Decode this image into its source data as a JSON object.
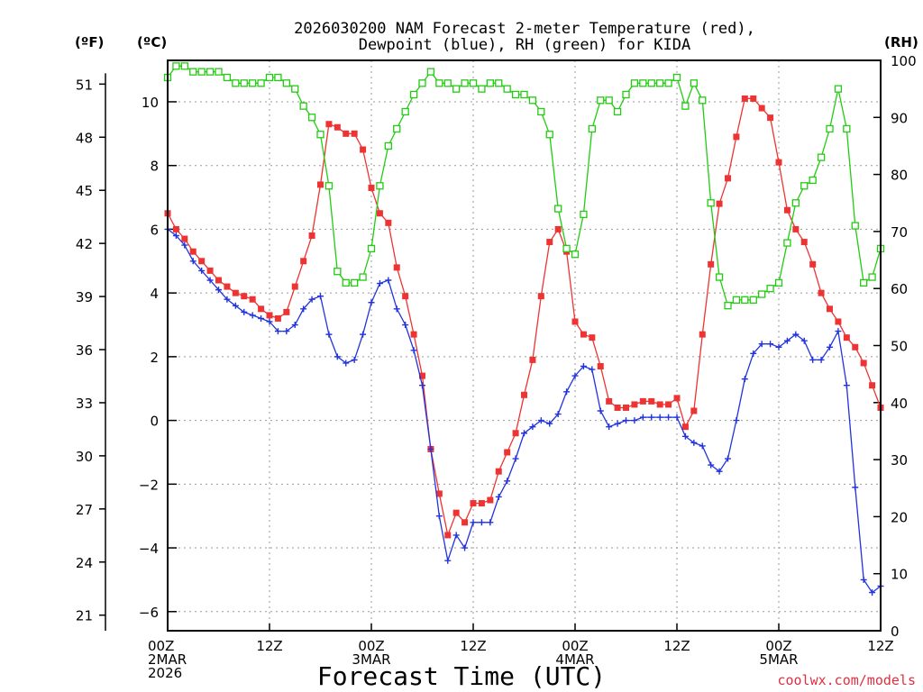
{
  "chart_data": {
    "type": "line",
    "title_line1": "2026030200 NAM Forecast 2-meter Temperature (red),",
    "title_line2": "Dewpoint (blue), RH (green) for KIDA",
    "xlabel": "Forecast Time (UTC)",
    "watermark": "coolwx.com/models",
    "unit_f": "(ºF)",
    "unit_c": "(ºC)",
    "unit_rh": "(RH)",
    "ylim_c": [
      -6.6,
      11.3
    ],
    "ylim_rh": [
      0,
      100
    ],
    "grid": true,
    "x_ticks": [
      {
        "hour": 0,
        "lines": [
          "00Z",
          "2MAR",
          "2026"
        ]
      },
      {
        "hour": 12,
        "lines": [
          "12Z"
        ]
      },
      {
        "hour": 24,
        "lines": [
          "00Z",
          "3MAR"
        ]
      },
      {
        "hour": 36,
        "lines": [
          "12Z"
        ]
      },
      {
        "hour": 48,
        "lines": [
          "00Z",
          "4MAR"
        ]
      },
      {
        "hour": 60,
        "lines": [
          "12Z"
        ]
      },
      {
        "hour": 72,
        "lines": [
          "00Z",
          "5MAR"
        ]
      },
      {
        "hour": 84,
        "lines": [
          "12Z"
        ]
      }
    ],
    "y_ticks_c": [
      "-6",
      "-4",
      "-2",
      "0",
      "2",
      "4",
      "6",
      "8",
      "10"
    ],
    "y_ticks_f": [
      "21",
      "24",
      "27",
      "30",
      "33",
      "36",
      "39",
      "42",
      "45",
      "48",
      "51"
    ],
    "y_ticks_rh": [
      "0",
      "10",
      "20",
      "30",
      "40",
      "50",
      "60",
      "70",
      "80",
      "90",
      "100"
    ],
    "series": [
      {
        "key": "temperature",
        "color": "#ee3333",
        "marker": "filled-square",
        "x": [
          0,
          1,
          2,
          3,
          4,
          5,
          6,
          7,
          8,
          9,
          10,
          11,
          12,
          13,
          14,
          15,
          16,
          17,
          18,
          19,
          20,
          21,
          22,
          23,
          24,
          25,
          26,
          27,
          28,
          29,
          30,
          31,
          32,
          33,
          34,
          35,
          36,
          37,
          38,
          39,
          40,
          41,
          42,
          43,
          44,
          45,
          46,
          47,
          48,
          49,
          50,
          51,
          52,
          53,
          54,
          55,
          56,
          57,
          58,
          59,
          60,
          61,
          62,
          63,
          64,
          65,
          66,
          67,
          68,
          69,
          70,
          71,
          72,
          73,
          74,
          75,
          76,
          77,
          78,
          79,
          80,
          81,
          82,
          83,
          84
        ],
        "values": [
          6.5,
          6.0,
          5.7,
          5.3,
          5.0,
          4.7,
          4.4,
          4.2,
          4.0,
          3.9,
          3.8,
          3.5,
          3.3,
          3.2,
          3.4,
          4.2,
          5.0,
          5.8,
          7.4,
          9.3,
          9.2,
          9.0,
          9.0,
          8.5,
          7.3,
          6.5,
          6.2,
          4.8,
          3.9,
          2.7,
          1.4,
          -0.9,
          -2.3,
          -3.6,
          -2.9,
          -3.2,
          -2.6,
          -2.6,
          -2.5,
          -1.6,
          -1.0,
          -0.4,
          0.8,
          1.9,
          3.9,
          5.6,
          6.0,
          5.3,
          3.1,
          2.7,
          2.6,
          1.7,
          0.6,
          0.4,
          0.4,
          0.5,
          0.6,
          0.6,
          0.5,
          0.5,
          0.7,
          -0.2,
          0.3,
          2.7,
          4.9,
          6.8,
          7.6,
          8.9,
          10.1,
          10.1,
          9.8,
          9.5,
          8.1,
          6.6,
          6.0,
          5.6,
          4.9,
          4.0,
          3.5,
          3.1,
          2.6,
          2.3,
          1.8,
          1.1,
          0.4
        ]
      },
      {
        "key": "dewpoint",
        "color": "#2233dd",
        "marker": "plus",
        "x": [
          0,
          1,
          2,
          3,
          4,
          5,
          6,
          7,
          8,
          9,
          10,
          11,
          12,
          13,
          14,
          15,
          16,
          17,
          18,
          19,
          20,
          21,
          22,
          23,
          24,
          25,
          26,
          27,
          28,
          29,
          30,
          31,
          32,
          33,
          34,
          35,
          36,
          37,
          38,
          39,
          40,
          41,
          42,
          43,
          44,
          45,
          46,
          47,
          48,
          49,
          50,
          51,
          52,
          53,
          54,
          55,
          56,
          57,
          58,
          59,
          60,
          61,
          62,
          63,
          64,
          65,
          66,
          67,
          68,
          69,
          70,
          71,
          72,
          73,
          74,
          75,
          76,
          77,
          78,
          79,
          80,
          81,
          82,
          83,
          84
        ],
        "values": [
          6.0,
          5.8,
          5.5,
          5.0,
          4.7,
          4.4,
          4.1,
          3.8,
          3.6,
          3.4,
          3.3,
          3.2,
          3.1,
          2.8,
          2.8,
          3.0,
          3.5,
          3.8,
          3.9,
          2.7,
          2.0,
          1.8,
          1.9,
          2.7,
          3.7,
          4.3,
          4.4,
          3.5,
          3.0,
          2.2,
          1.1,
          -0.9,
          -3.0,
          -4.4,
          -3.6,
          -4.0,
          -3.2,
          -3.2,
          -3.2,
          -2.4,
          -1.9,
          -1.2,
          -0.4,
          -0.2,
          0.0,
          -0.1,
          0.2,
          0.9,
          1.4,
          1.7,
          1.6,
          0.3,
          -0.2,
          -0.1,
          0.0,
          0.0,
          0.1,
          0.1,
          0.1,
          0.1,
          0.1,
          -0.5,
          -0.7,
          -0.8,
          -1.4,
          -1.6,
          -1.2,
          0.0,
          1.3,
          2.1,
          2.4,
          2.4,
          2.3,
          2.5,
          2.7,
          2.5,
          1.9,
          1.9,
          2.3,
          2.8,
          1.1,
          -2.1,
          -5.0,
          -5.4,
          -5.2
        ]
      },
      {
        "key": "rh",
        "color": "#22cc11",
        "marker": "open-square",
        "x": [
          0,
          1,
          2,
          3,
          4,
          5,
          6,
          7,
          8,
          9,
          10,
          11,
          12,
          13,
          14,
          15,
          16,
          17,
          18,
          19,
          20,
          21,
          22,
          23,
          24,
          25,
          26,
          27,
          28,
          29,
          30,
          31,
          32,
          33,
          34,
          35,
          36,
          37,
          38,
          39,
          40,
          41,
          42,
          43,
          44,
          45,
          46,
          47,
          48,
          49,
          50,
          51,
          52,
          53,
          54,
          55,
          56,
          57,
          58,
          59,
          60,
          61,
          62,
          63,
          64,
          65,
          66,
          67,
          68,
          69,
          70,
          71,
          72,
          73,
          74,
          75,
          76,
          77,
          78,
          79,
          80,
          81,
          82,
          83,
          84
        ],
        "values": [
          97,
          99,
          99,
          98,
          98,
          98,
          98,
          97,
          96,
          96,
          96,
          96,
          97,
          97,
          96,
          95,
          92,
          90,
          87,
          78,
          63,
          61,
          61,
          62,
          67,
          78,
          85,
          88,
          91,
          94,
          96,
          98,
          96,
          96,
          95,
          96,
          96,
          95,
          96,
          96,
          95,
          94,
          94,
          93,
          91,
          87,
          74,
          67,
          66,
          73,
          88,
          93,
          93,
          91,
          94,
          96,
          96,
          96,
          96,
          96,
          97,
          92,
          96,
          93,
          75,
          62,
          57,
          58,
          58,
          58,
          59,
          60,
          61,
          68,
          75,
          78,
          79,
          83,
          88,
          95,
          88,
          71,
          61,
          62,
          67
        ]
      }
    ]
  }
}
